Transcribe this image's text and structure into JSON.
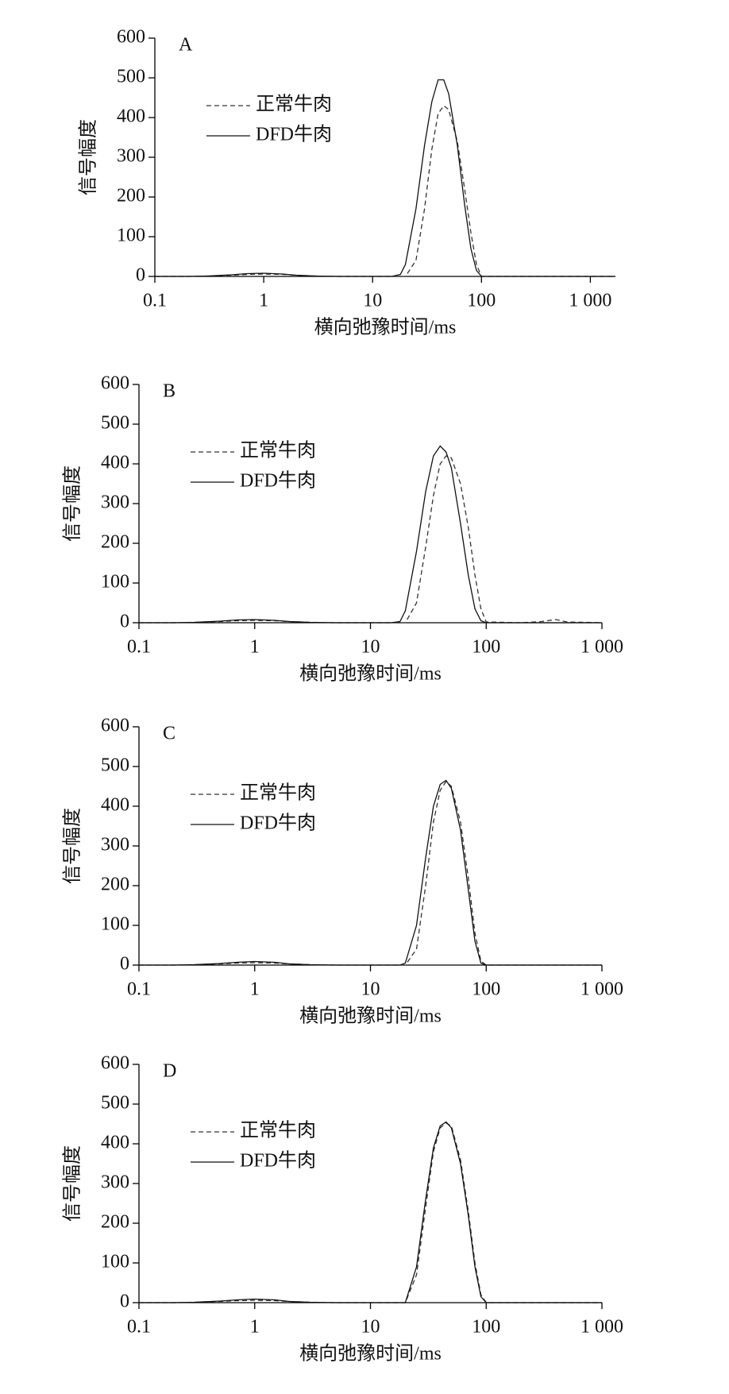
{
  "chart_data": [
    {
      "type": "line",
      "title": "A",
      "x_label": "横向弛豫时间/ms",
      "y_label": "信号幅度",
      "xscale": "log",
      "legend": "upper left",
      "x": [
        0.1,
        0.2,
        0.3,
        0.5,
        0.7,
        1,
        1.5,
        2,
        3,
        5,
        10,
        15,
        18,
        20,
        25,
        30,
        35,
        40,
        45,
        50,
        60,
        70,
        80,
        90,
        100,
        200,
        300,
        400,
        500,
        1000,
        1700
      ],
      "series": [
        {
          "name": "正常牛肉",
          "color": "#333333",
          "linestyle": "dashed",
          "values": [
            0,
            0,
            1,
            3,
            5,
            6,
            5,
            3,
            1,
            0,
            0,
            0,
            0,
            0,
            40,
            170,
            320,
            410,
            430,
            420,
            340,
            220,
            110,
            30,
            0,
            0,
            0,
            0,
            0,
            0,
            0
          ]
        },
        {
          "name": "DFD牛肉",
          "color": "#111111",
          "linestyle": "solid",
          "values": [
            0,
            0,
            1,
            4,
            7,
            8,
            6,
            3,
            1,
            0,
            0,
            0,
            5,
            30,
            170,
            330,
            440,
            495,
            495,
            460,
            330,
            180,
            70,
            15,
            0,
            0,
            0,
            0,
            0,
            0,
            0
          ]
        }
      ],
      "xlim": [
        0.1,
        1700
      ],
      "ylim": [
        0,
        600
      ],
      "xticks": [
        0.1,
        1,
        10,
        100,
        {
          "value": 1000,
          "label": "1 000"
        }
      ],
      "yticks": [
        0,
        100,
        200,
        300,
        400,
        500,
        600
      ]
    },
    {
      "type": "line",
      "title": "B",
      "x_label": "横向弛豫时间/ms",
      "y_label": "信号幅度",
      "xscale": "log",
      "legend": "upper left",
      "x": [
        0.1,
        0.2,
        0.3,
        0.5,
        0.7,
        1,
        1.5,
        2,
        3,
        5,
        10,
        15,
        18,
        20,
        25,
        30,
        35,
        40,
        45,
        50,
        60,
        70,
        80,
        90,
        100,
        200,
        300,
        400,
        500,
        1000
      ],
      "series": [
        {
          "name": "正常牛肉",
          "color": "#333333",
          "linestyle": "dashed",
          "values": [
            0,
            0,
            1,
            3,
            5,
            6,
            5,
            3,
            1,
            0,
            0,
            0,
            0,
            0,
            50,
            190,
            320,
            400,
            420,
            415,
            350,
            240,
            120,
            35,
            2,
            0,
            3,
            8,
            2,
            0
          ]
        },
        {
          "name": "DFD牛肉",
          "color": "#111111",
          "linestyle": "solid",
          "values": [
            0,
            0,
            1,
            4,
            7,
            8,
            6,
            3,
            1,
            0,
            0,
            0,
            3,
            30,
            180,
            330,
            420,
            445,
            430,
            390,
            250,
            120,
            35,
            5,
            0,
            0,
            0,
            0,
            0,
            0
          ]
        }
      ],
      "xlim": [
        0.1,
        1000
      ],
      "ylim": [
        0,
        600
      ],
      "xticks": [
        0.1,
        1,
        10,
        100,
        {
          "value": 1000,
          "label": "1 000"
        }
      ],
      "yticks": [
        0,
        100,
        200,
        300,
        400,
        500,
        600
      ]
    },
    {
      "type": "line",
      "title": "C",
      "x_label": "横向弛豫时间/ms",
      "y_label": "信号幅度",
      "xscale": "log",
      "legend": "upper left",
      "x": [
        0.1,
        0.2,
        0.3,
        0.5,
        0.7,
        1,
        1.5,
        2,
        3,
        5,
        10,
        15,
        18,
        20,
        25,
        30,
        35,
        40,
        45,
        50,
        60,
        70,
        80,
        90,
        100,
        200,
        300,
        400,
        500,
        1000
      ],
      "series": [
        {
          "name": "正常牛肉",
          "color": "#333333",
          "linestyle": "dashed",
          "values": [
            0,
            0,
            1,
            3,
            5,
            6,
            5,
            3,
            1,
            0,
            0,
            0,
            0,
            0,
            40,
            200,
            360,
            440,
            462,
            450,
            360,
            220,
            80,
            10,
            0,
            0,
            0,
            0,
            0,
            0
          ]
        },
        {
          "name": "DFD牛肉",
          "color": "#111111",
          "linestyle": "solid",
          "values": [
            0,
            0,
            1,
            4,
            7,
            9,
            7,
            3,
            1,
            0,
            0,
            0,
            0,
            5,
            100,
            270,
            400,
            455,
            465,
            445,
            340,
            190,
            60,
            5,
            0,
            0,
            0,
            0,
            0,
            0
          ]
        }
      ],
      "xlim": [
        0.1,
        1000
      ],
      "ylim": [
        0,
        600
      ],
      "xticks": [
        0.1,
        1,
        10,
        100,
        {
          "value": 1000,
          "label": "1 000"
        }
      ],
      "yticks": [
        0,
        100,
        200,
        300,
        400,
        500,
        600
      ]
    },
    {
      "type": "line",
      "title": "D",
      "x_label": "横向弛豫时间/ms",
      "y_label": "信号幅度",
      "xscale": "log",
      "legend": "upper left",
      "x": [
        0.1,
        0.2,
        0.3,
        0.5,
        0.7,
        1,
        1.5,
        2,
        3,
        5,
        10,
        15,
        18,
        20,
        25,
        30,
        35,
        40,
        45,
        50,
        60,
        70,
        80,
        90,
        100,
        200,
        300,
        400,
        500,
        1000
      ],
      "series": [
        {
          "name": "正常牛肉",
          "color": "#333333",
          "linestyle": "dashed",
          "values": [
            0,
            0,
            1,
            3,
            5,
            6,
            5,
            3,
            1,
            0,
            0,
            0,
            0,
            0,
            70,
            240,
            380,
            440,
            452,
            445,
            360,
            230,
            100,
            20,
            0,
            0,
            0,
            0,
            0,
            0
          ]
        },
        {
          "name": "DFD牛肉",
          "color": "#111111",
          "linestyle": "solid",
          "values": [
            0,
            0,
            1,
            4,
            7,
            9,
            7,
            3,
            1,
            0,
            0,
            0,
            0,
            0,
            90,
            260,
            390,
            445,
            455,
            440,
            350,
            220,
            90,
            15,
            0,
            0,
            0,
            0,
            0,
            0
          ]
        }
      ],
      "xlim": [
        0.1,
        1000
      ],
      "ylim": [
        0,
        600
      ],
      "xticks": [
        0.1,
        1,
        10,
        100,
        {
          "value": 1000,
          "label": "1 000"
        }
      ],
      "yticks": [
        0,
        100,
        200,
        300,
        400,
        500,
        600
      ]
    }
  ]
}
